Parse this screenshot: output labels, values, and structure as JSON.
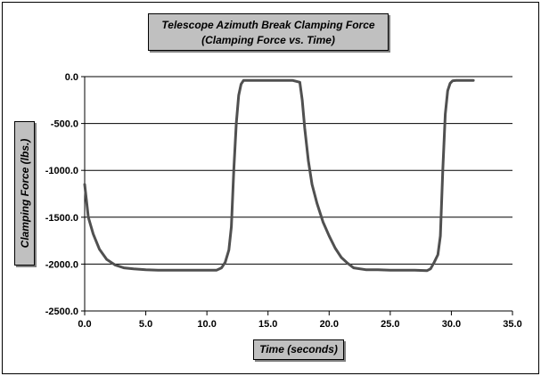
{
  "chart_data": {
    "type": "line",
    "title_line1": "Telescope Azimuth Break Clamping Force",
    "title_line2": "(Clamping Force vs. Time)",
    "xlabel": "Time (seconds)",
    "ylabel": "Clamping Force (lbs.)",
    "xlim": [
      0,
      35
    ],
    "ylim": [
      -2500,
      0
    ],
    "x_ticks": [
      0,
      5,
      10,
      15,
      20,
      25,
      30,
      35
    ],
    "x_tick_labels": [
      "0.0",
      "5.0",
      "10.0",
      "15.0",
      "20.0",
      "25.0",
      "30.0",
      "35.0"
    ],
    "y_ticks": [
      0,
      -500,
      -1000,
      -1500,
      -2000,
      -2500
    ],
    "y_tick_labels": [
      "0.0",
      "-500.0",
      "-1000.0",
      "-1500.0",
      "-2000.0",
      "-2500.0"
    ],
    "gridlines": "horizontal",
    "line_color": "#505050",
    "series": [
      {
        "x": [
          0.0,
          0.3,
          0.7,
          1.2,
          1.8,
          2.5,
          3.2,
          4.0,
          5.0,
          6.0,
          7.0,
          8.0,
          9.0,
          10.0,
          10.8,
          11.2,
          11.5,
          11.8,
          12.0,
          12.2,
          12.4,
          12.6,
          12.8,
          13.0,
          14.0,
          15.0,
          16.0,
          17.0,
          17.6,
          17.8,
          18.0,
          18.3,
          18.6,
          19.0,
          19.5,
          20.0,
          20.5,
          21.0,
          21.5,
          22.0,
          23.0,
          24.0,
          25.0,
          26.0,
          27.0,
          28.0,
          28.3,
          28.6,
          28.9,
          29.1,
          29.3,
          29.5,
          29.7,
          29.9,
          30.1,
          30.4,
          31.0,
          31.8
        ],
        "y": [
          -1150,
          -1500,
          -1680,
          -1840,
          -1950,
          -2010,
          -2040,
          -2050,
          -2060,
          -2065,
          -2065,
          -2065,
          -2065,
          -2065,
          -2065,
          -2040,
          -1980,
          -1850,
          -1600,
          -1000,
          -500,
          -200,
          -80,
          -40,
          -40,
          -40,
          -40,
          -40,
          -60,
          -250,
          -550,
          -900,
          -1150,
          -1350,
          -1550,
          -1700,
          -1830,
          -1930,
          -1990,
          -2040,
          -2060,
          -2060,
          -2065,
          -2065,
          -2065,
          -2070,
          -2050,
          -1980,
          -1900,
          -1700,
          -1000,
          -400,
          -150,
          -70,
          -45,
          -40,
          -40,
          -40
        ]
      }
    ]
  }
}
